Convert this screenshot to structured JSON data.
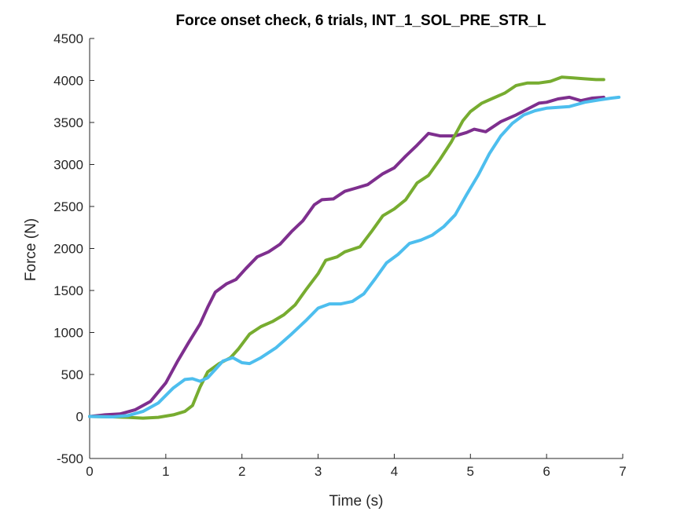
{
  "chart_data": {
    "type": "line",
    "title": "Force onset check, 6 trials, INT_1_SOL_PRE_STR_L",
    "xlabel": "Time (s)",
    "ylabel": "Force (N)",
    "xlim": [
      0,
      7
    ],
    "ylim": [
      -500,
      4500
    ],
    "xticks": [
      0,
      1,
      2,
      3,
      4,
      5,
      6,
      7
    ],
    "yticks": [
      -500,
      0,
      500,
      1000,
      1500,
      2000,
      2500,
      3000,
      3500,
      4000,
      4500
    ],
    "grid": false,
    "series": [
      {
        "color": "#7E2F8E",
        "points": [
          [
            0,
            0
          ],
          [
            0.2,
            20
          ],
          [
            0.4,
            30
          ],
          [
            0.6,
            80
          ],
          [
            0.8,
            180
          ],
          [
            1.0,
            400
          ],
          [
            1.15,
            650
          ],
          [
            1.3,
            880
          ],
          [
            1.45,
            1100
          ],
          [
            1.55,
            1300
          ],
          [
            1.65,
            1480
          ],
          [
            1.8,
            1580
          ],
          [
            1.92,
            1630
          ],
          [
            2.05,
            1760
          ],
          [
            2.2,
            1900
          ],
          [
            2.35,
            1960
          ],
          [
            2.5,
            2050
          ],
          [
            2.65,
            2200
          ],
          [
            2.8,
            2330
          ],
          [
            2.95,
            2520
          ],
          [
            3.05,
            2580
          ],
          [
            3.2,
            2590
          ],
          [
            3.35,
            2680
          ],
          [
            3.5,
            2720
          ],
          [
            3.65,
            2760
          ],
          [
            3.85,
            2890
          ],
          [
            4.0,
            2960
          ],
          [
            4.15,
            3100
          ],
          [
            4.3,
            3230
          ],
          [
            4.45,
            3370
          ],
          [
            4.6,
            3340
          ],
          [
            4.8,
            3340
          ],
          [
            4.95,
            3380
          ],
          [
            5.05,
            3420
          ],
          [
            5.2,
            3390
          ],
          [
            5.4,
            3510
          ],
          [
            5.6,
            3590
          ],
          [
            5.75,
            3660
          ],
          [
            5.9,
            3730
          ],
          [
            6.0,
            3740
          ],
          [
            6.15,
            3780
          ],
          [
            6.3,
            3800
          ],
          [
            6.45,
            3760
          ],
          [
            6.6,
            3790
          ],
          [
            6.75,
            3800
          ]
        ]
      },
      {
        "color": "#77AC30",
        "points": [
          [
            0,
            0
          ],
          [
            0.3,
            -5
          ],
          [
            0.5,
            -10
          ],
          [
            0.7,
            -20
          ],
          [
            0.9,
            -10
          ],
          [
            1.1,
            20
          ],
          [
            1.25,
            60
          ],
          [
            1.35,
            130
          ],
          [
            1.45,
            350
          ],
          [
            1.55,
            530
          ],
          [
            1.7,
            630
          ],
          [
            1.85,
            700
          ],
          [
            1.95,
            800
          ],
          [
            2.1,
            980
          ],
          [
            2.25,
            1070
          ],
          [
            2.4,
            1130
          ],
          [
            2.55,
            1210
          ],
          [
            2.7,
            1330
          ],
          [
            2.85,
            1520
          ],
          [
            3.0,
            1700
          ],
          [
            3.1,
            1860
          ],
          [
            3.25,
            1900
          ],
          [
            3.35,
            1960
          ],
          [
            3.55,
            2020
          ],
          [
            3.7,
            2200
          ],
          [
            3.85,
            2390
          ],
          [
            4.0,
            2470
          ],
          [
            4.15,
            2580
          ],
          [
            4.3,
            2780
          ],
          [
            4.45,
            2870
          ],
          [
            4.6,
            3060
          ],
          [
            4.75,
            3270
          ],
          [
            4.9,
            3520
          ],
          [
            5.0,
            3630
          ],
          [
            5.15,
            3730
          ],
          [
            5.3,
            3790
          ],
          [
            5.45,
            3850
          ],
          [
            5.6,
            3940
          ],
          [
            5.75,
            3970
          ],
          [
            5.9,
            3970
          ],
          [
            6.05,
            3990
          ],
          [
            6.2,
            4040
          ],
          [
            6.35,
            4030
          ],
          [
            6.5,
            4020
          ],
          [
            6.65,
            4010
          ],
          [
            6.75,
            4010
          ]
        ]
      },
      {
        "color": "#4DBEEE",
        "points": [
          [
            0,
            0
          ],
          [
            0.3,
            -5
          ],
          [
            0.5,
            10
          ],
          [
            0.7,
            60
          ],
          [
            0.9,
            160
          ],
          [
            1.1,
            340
          ],
          [
            1.25,
            440
          ],
          [
            1.35,
            450
          ],
          [
            1.45,
            420
          ],
          [
            1.55,
            460
          ],
          [
            1.65,
            560
          ],
          [
            1.75,
            660
          ],
          [
            1.88,
            700
          ],
          [
            2.0,
            640
          ],
          [
            2.1,
            630
          ],
          [
            2.25,
            700
          ],
          [
            2.45,
            820
          ],
          [
            2.65,
            980
          ],
          [
            2.85,
            1150
          ],
          [
            3.0,
            1290
          ],
          [
            3.15,
            1340
          ],
          [
            3.3,
            1340
          ],
          [
            3.45,
            1370
          ],
          [
            3.6,
            1460
          ],
          [
            3.75,
            1640
          ],
          [
            3.9,
            1830
          ],
          [
            4.05,
            1930
          ],
          [
            4.2,
            2060
          ],
          [
            4.35,
            2100
          ],
          [
            4.5,
            2160
          ],
          [
            4.65,
            2260
          ],
          [
            4.8,
            2400
          ],
          [
            4.95,
            2640
          ],
          [
            5.1,
            2870
          ],
          [
            5.25,
            3130
          ],
          [
            5.4,
            3340
          ],
          [
            5.55,
            3490
          ],
          [
            5.7,
            3590
          ],
          [
            5.85,
            3640
          ],
          [
            6.0,
            3670
          ],
          [
            6.15,
            3680
          ],
          [
            6.3,
            3690
          ],
          [
            6.5,
            3740
          ],
          [
            6.7,
            3770
          ],
          [
            6.85,
            3790
          ],
          [
            6.95,
            3800
          ]
        ]
      }
    ]
  }
}
